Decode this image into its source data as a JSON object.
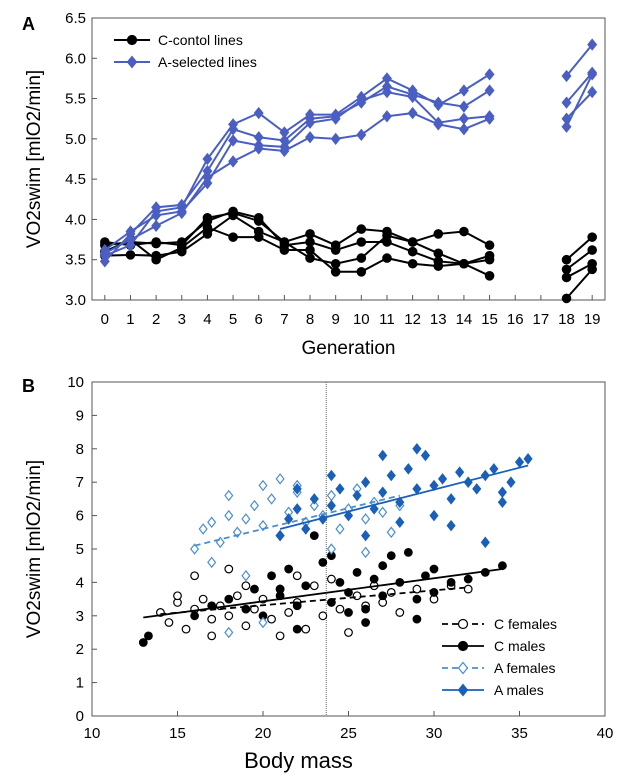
{
  "chart_data": [
    {
      "panel": "A",
      "type": "line",
      "xlabel": "Generation",
      "ylabel": "VO2swim [mlO2/min]",
      "xlim": [
        -0.5,
        19.5
      ],
      "ylim": [
        3.0,
        6.5
      ],
      "xticks": [
        "0",
        "1",
        "2",
        "3",
        "4",
        "5",
        "6",
        "7",
        "8",
        "9",
        "10",
        "11",
        "12",
        "13",
        "14",
        "15",
        "16",
        "17",
        "18",
        "19"
      ],
      "yticks": [
        "3.0",
        "3.5",
        "4.0",
        "4.5",
        "5.0",
        "5.5",
        "6.0",
        "6.5"
      ],
      "grid": false,
      "legend": "top-left",
      "legend_entries": [
        {
          "label": "C-contol lines",
          "color": "#000000",
          "marker": "circle"
        },
        {
          "label": "A-selected lines",
          "color": "#4a5fc1",
          "marker": "diamond"
        }
      ],
      "gap_generations": [
        16,
        17
      ],
      "series": [
        {
          "group": "C",
          "color": "#000000",
          "marker": "circle",
          "values": [
            3.68,
            3.72,
            3.7,
            3.72,
            3.98,
            4.1,
            4.02,
            3.68,
            3.72,
            3.62,
            3.72,
            3.72,
            3.6,
            3.48,
            3.45,
            3.55,
            null,
            null,
            3.5,
            3.78
          ]
        },
        {
          "group": "C",
          "color": "#000000",
          "marker": "circle",
          "values": [
            3.6,
            3.75,
            3.5,
            3.65,
            3.9,
            3.78,
            3.78,
            3.62,
            3.62,
            3.35,
            3.35,
            3.52,
            3.45,
            3.42,
            3.45,
            3.3,
            null,
            null,
            3.38,
            3.62
          ]
        },
        {
          "group": "C",
          "color": "#000000",
          "marker": "circle",
          "values": [
            3.55,
            3.56,
            3.55,
            3.6,
            3.82,
            4.05,
            3.85,
            3.72,
            3.52,
            3.45,
            3.52,
            3.8,
            3.72,
            3.58,
            3.45,
            3.5,
            null,
            null,
            3.28,
            3.45
          ]
        },
        {
          "group": "C",
          "color": "#000000",
          "marker": "circle",
          "values": [
            3.72,
            3.68,
            3.72,
            3.68,
            4.02,
            4.08,
            3.98,
            3.72,
            3.82,
            3.68,
            3.88,
            3.85,
            3.72,
            3.82,
            3.85,
            3.68,
            null,
            null,
            3.02,
            3.38
          ]
        },
        {
          "group": "A",
          "color": "#4a5fc1",
          "marker": "diamond",
          "values": [
            3.55,
            3.68,
            4.1,
            4.15,
            4.75,
            5.18,
            5.32,
            5.08,
            5.3,
            5.3,
            5.52,
            5.75,
            5.6,
            5.42,
            5.6,
            5.8,
            null,
            null,
            5.78,
            6.17
          ]
        },
        {
          "group": "A",
          "color": "#4a5fc1",
          "marker": "diamond",
          "values": [
            3.48,
            3.82,
            4.15,
            4.18,
            4.6,
            5.12,
            5.02,
            4.98,
            5.25,
            5.28,
            5.45,
            5.65,
            5.55,
            5.45,
            5.4,
            5.6,
            null,
            null,
            5.45,
            5.82
          ]
        },
        {
          "group": "A",
          "color": "#4a5fc1",
          "marker": "diamond",
          "values": [
            3.62,
            3.85,
            4.05,
            4.1,
            4.45,
            4.98,
            4.92,
            4.9,
            5.2,
            5.25,
            5.48,
            5.58,
            5.52,
            5.2,
            5.25,
            5.28,
            null,
            null,
            5.25,
            5.58
          ]
        },
        {
          "group": "A",
          "color": "#4a5fc1",
          "marker": "diamond",
          "values": [
            3.58,
            3.75,
            3.92,
            4.08,
            4.52,
            4.72,
            4.88,
            4.85,
            5.02,
            5.0,
            5.05,
            5.28,
            5.32,
            5.18,
            5.12,
            5.25,
            null,
            null,
            5.15,
            5.8
          ]
        }
      ]
    },
    {
      "panel": "B",
      "type": "scatter",
      "xlabel": "Body mass",
      "ylabel": "VO2swim [mlO2/min]",
      "xlim": [
        10,
        40
      ],
      "ylim": [
        0,
        10
      ],
      "xticks": [
        "10",
        "15",
        "20",
        "25",
        "30",
        "35",
        "40"
      ],
      "yticks": [
        "0",
        "1",
        "2",
        "3",
        "4",
        "5",
        "6",
        "7",
        "8",
        "9",
        "10"
      ],
      "grid": false,
      "legend": "bottom-right",
      "reference_line_x": 23.7,
      "series": [
        {
          "name": "C females",
          "color": "#000000",
          "marker": "open-circle",
          "line_style": "dashed",
          "fit": {
            "x": [
              14,
              32
            ],
            "y": [
              3.05,
              3.85
            ]
          },
          "points": [
            [
              14,
              3.1
            ],
            [
              14.5,
              2.8
            ],
            [
              15,
              3.4
            ],
            [
              15.5,
              2.6
            ],
            [
              16,
              3.2
            ],
            [
              16.5,
              3.5
            ],
            [
              17,
              2.9
            ],
            [
              17.5,
              3.3
            ],
            [
              18,
              3.0
            ],
            [
              18.5,
              3.6
            ],
            [
              19,
              2.7
            ],
            [
              19.5,
              3.2
            ],
            [
              20,
              3.5
            ],
            [
              20.5,
              2.9
            ],
            [
              21,
              3.8
            ],
            [
              21.5,
              3.1
            ],
            [
              22,
              3.4
            ],
            [
              22.5,
              2.6
            ],
            [
              23,
              3.9
            ],
            [
              23.5,
              3.0
            ],
            [
              24,
              4.1
            ],
            [
              24.5,
              3.2
            ],
            [
              25,
              2.5
            ],
            [
              25.5,
              3.6
            ],
            [
              26,
              3.3
            ],
            [
              26.5,
              3.9
            ],
            [
              27,
              3.4
            ],
            [
              27.5,
              3.7
            ],
            [
              28,
              3.1
            ],
            [
              29,
              3.8
            ],
            [
              30,
              3.5
            ],
            [
              31,
              3.9
            ],
            [
              32,
              3.8
            ],
            [
              16,
              4.2
            ],
            [
              18,
              4.4
            ],
            [
              21,
              2.4
            ],
            [
              19,
              3.9
            ],
            [
              22,
              4.2
            ],
            [
              17,
              2.4
            ],
            [
              15,
              3.6
            ]
          ]
        },
        {
          "name": "C males",
          "color": "#000000",
          "marker": "filled-circle",
          "line_style": "solid",
          "fit": {
            "x": [
              13,
              34
            ],
            "y": [
              2.95,
              4.4
            ]
          },
          "points": [
            [
              13,
              2.2
            ],
            [
              13.3,
              2.4
            ],
            [
              16,
              3.0
            ],
            [
              17,
              3.3
            ],
            [
              18,
              3.5
            ],
            [
              19,
              3.2
            ],
            [
              19.5,
              3.8
            ],
            [
              20,
              3.0
            ],
            [
              20.5,
              4.2
            ],
            [
              21,
              3.6
            ],
            [
              21.5,
              4.4
            ],
            [
              22,
              3.3
            ],
            [
              22.5,
              3.9
            ],
            [
              23,
              5.4
            ],
            [
              23.5,
              4.6
            ],
            [
              24,
              3.4
            ],
            [
              24.5,
              4.0
            ],
            [
              25,
              3.7
            ],
            [
              25.5,
              4.3
            ],
            [
              26,
              3.2
            ],
            [
              26.5,
              4.1
            ],
            [
              27,
              3.6
            ],
            [
              27.5,
              4.8
            ],
            [
              28,
              4.0
            ],
            [
              28.5,
              4.9
            ],
            [
              29,
              3.5
            ],
            [
              29.5,
              4.2
            ],
            [
              30,
              3.7
            ],
            [
              31,
              4.0
            ],
            [
              32,
              4.1
            ],
            [
              33,
              4.3
            ],
            [
              34,
              4.5
            ],
            [
              22,
              2.6
            ],
            [
              26,
              2.8
            ],
            [
              29,
              2.9
            ],
            [
              21,
              3.8
            ],
            [
              24,
              4.8
            ],
            [
              27,
              4.5
            ],
            [
              30,
              4.4
            ],
            [
              25,
              3.1
            ]
          ]
        },
        {
          "name": "A females",
          "color": "#4a8ed0",
          "marker": "open-diamond",
          "line_style": "dashed",
          "fit": {
            "x": [
              16,
              28
            ],
            "y": [
              5.1,
              6.6
            ]
          },
          "points": [
            [
              16,
              5.0
            ],
            [
              16.5,
              5.6
            ],
            [
              17,
              5.8
            ],
            [
              17.5,
              5.2
            ],
            [
              18,
              6.0
            ],
            [
              18.5,
              5.5
            ],
            [
              19,
              5.9
            ],
            [
              19.5,
              6.3
            ],
            [
              20,
              5.7
            ],
            [
              20.5,
              6.5
            ],
            [
              21,
              5.4
            ],
            [
              21.5,
              6.1
            ],
            [
              22,
              6.7
            ],
            [
              22.5,
              5.8
            ],
            [
              23,
              6.3
            ],
            [
              23.5,
              6.0
            ],
            [
              24,
              6.6
            ],
            [
              24.5,
              5.6
            ],
            [
              25,
              6.2
            ],
            [
              25.5,
              6.8
            ],
            [
              26,
              5.9
            ],
            [
              26.5,
              6.4
            ],
            [
              27,
              6.1
            ],
            [
              27.5,
              5.5
            ],
            [
              28,
              6.3
            ],
            [
              17,
              4.6
            ],
            [
              19,
              4.2
            ],
            [
              20,
              2.8
            ],
            [
              18,
              2.5
            ],
            [
              21,
              7.1
            ],
            [
              22,
              6.9
            ],
            [
              26,
              4.9
            ],
            [
              24,
              5.0
            ],
            [
              18,
              6.6
            ],
            [
              20,
              6.9
            ]
          ]
        },
        {
          "name": "A males",
          "color": "#1a5fb8",
          "marker": "filled-diamond",
          "line_style": "solid",
          "fit": {
            "x": [
              21,
              35.5
            ],
            "y": [
              5.6,
              7.5
            ]
          },
          "points": [
            [
              21,
              5.4
            ],
            [
              21.5,
              5.9
            ],
            [
              22,
              6.2
            ],
            [
              22.5,
              5.6
            ],
            [
              23,
              6.5
            ],
            [
              23.5,
              5.9
            ],
            [
              24,
              6.3
            ],
            [
              24.5,
              6.8
            ],
            [
              25,
              6.0
            ],
            [
              25.5,
              6.6
            ],
            [
              26,
              7.0
            ],
            [
              26.5,
              6.2
            ],
            [
              27,
              6.7
            ],
            [
              27.5,
              7.2
            ],
            [
              28,
              6.4
            ],
            [
              28.5,
              7.4
            ],
            [
              29,
              6.8
            ],
            [
              29.5,
              7.8
            ],
            [
              30,
              6.9
            ],
            [
              30.5,
              7.1
            ],
            [
              31,
              6.5
            ],
            [
              31.5,
              7.3
            ],
            [
              32,
              7.0
            ],
            [
              32.5,
              6.8
            ],
            [
              33,
              7.2
            ],
            [
              33.5,
              7.4
            ],
            [
              34,
              6.7
            ],
            [
              34.5,
              7.0
            ],
            [
              35,
              7.6
            ],
            [
              35.5,
              7.7
            ],
            [
              29,
              8.0
            ],
            [
              31,
              5.7
            ],
            [
              33,
              5.2
            ],
            [
              34,
              6.4
            ],
            [
              24,
              7.2
            ],
            [
              26,
              5.4
            ],
            [
              28,
              5.8
            ],
            [
              30,
              6.0
            ],
            [
              22,
              6.8
            ],
            [
              27,
              7.8
            ]
          ]
        }
      ],
      "legend_entries": [
        {
          "label": "C females",
          "color": "#000000",
          "marker": "open-circle",
          "line_style": "dashed"
        },
        {
          "label": "C males",
          "color": "#000000",
          "marker": "filled-circle",
          "line_style": "solid"
        },
        {
          "label": "A females",
          "color": "#4a8ed0",
          "marker": "open-diamond",
          "line_style": "dashed"
        },
        {
          "label": "A males",
          "color": "#1a5fb8",
          "marker": "filled-diamond",
          "line_style": "solid"
        }
      ]
    }
  ]
}
